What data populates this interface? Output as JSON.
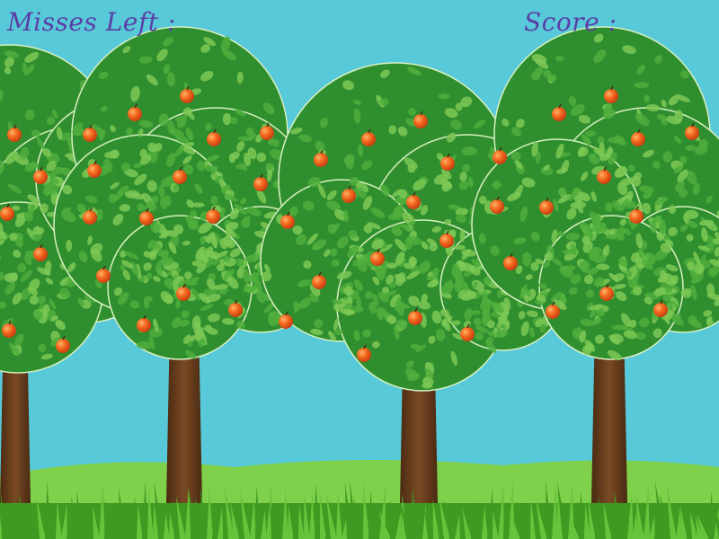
{
  "hud": {
    "misses_label": "Misses Left :",
    "misses_value": "",
    "score_label": "Score :",
    "score_value": ""
  },
  "colors": {
    "sky": "#57c9d8",
    "hud_text": "#5b3fa6",
    "leaf_dark": "#2f8f2f",
    "leaf_mid": "#4fae3c",
    "leaf_light": "#7cc855",
    "trunk": "#6b3f1f",
    "grass": "#67c33a",
    "grass_dark": "#3f9a22",
    "apple": "#f0601e"
  },
  "scene": {
    "trees": 4,
    "apples_visible": 48
  }
}
